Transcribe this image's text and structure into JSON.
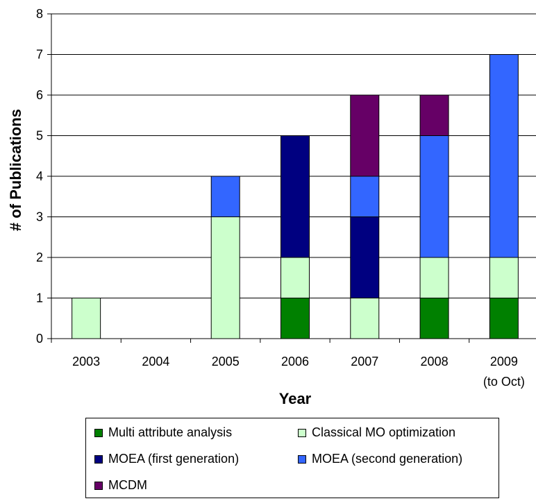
{
  "chart_data": {
    "type": "bar",
    "stacked": true,
    "xlabel": "Year",
    "ylabel": "# of Publications",
    "ylim": [
      0,
      8
    ],
    "yticks": [
      0,
      1,
      2,
      3,
      4,
      5,
      6,
      7,
      8
    ],
    "grid": true,
    "legend_position": "bottom",
    "categories": [
      {
        "label": "2003",
        "sublabel": ""
      },
      {
        "label": "2004",
        "sublabel": ""
      },
      {
        "label": "2005",
        "sublabel": ""
      },
      {
        "label": "2006",
        "sublabel": ""
      },
      {
        "label": "2007",
        "sublabel": ""
      },
      {
        "label": "2008",
        "sublabel": ""
      },
      {
        "label": "2009",
        "sublabel": "(to Oct)"
      }
    ],
    "series": [
      {
        "name": "Multi attribute analysis",
        "color": "#008000",
        "values": [
          0,
          0,
          0,
          1,
          0,
          1,
          1
        ]
      },
      {
        "name": "Classical MO optimization",
        "color": "#ccffcc",
        "values": [
          1,
          0,
          3,
          1,
          1,
          1,
          1
        ]
      },
      {
        "name": "MOEA (first generation)",
        "color": "#000080",
        "values": [
          0,
          0,
          0,
          3,
          2,
          0,
          0
        ]
      },
      {
        "name": "MOEA (second generation)",
        "color": "#3366ff",
        "values": [
          0,
          0,
          1,
          0,
          1,
          3,
          5
        ]
      },
      {
        "name": "MCDM",
        "color": "#660066",
        "values": [
          0,
          0,
          0,
          0,
          2,
          1,
          0
        ]
      }
    ]
  }
}
